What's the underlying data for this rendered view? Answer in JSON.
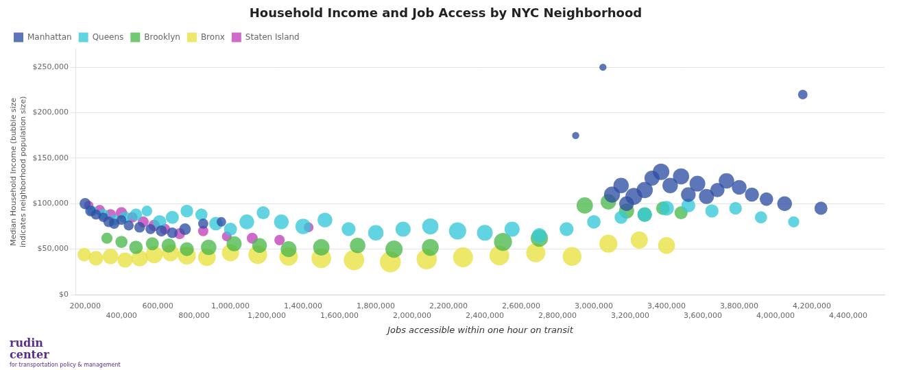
{
  "chart_data": {
    "type": "bubble",
    "title": "Household Income and Job Access by NYC Neighborhood",
    "xlabel": "Jobs accessible within one hour on transit",
    "ylabel": "Median Household Income (bubble size\nindicates neighborhood population size)",
    "xlim": [
      150000,
      4600000
    ],
    "ylim": [
      0,
      270000
    ],
    "xticks": [
      {
        "value": 200000,
        "label": "200,000"
      },
      {
        "value": 400000,
        "label": "400,000"
      },
      {
        "value": 600000,
        "label": "600,000"
      },
      {
        "value": 800000,
        "label": "800,000"
      },
      {
        "value": 1000000,
        "label": "1,000,000"
      },
      {
        "value": 1200000,
        "label": "1,200,000"
      },
      {
        "value": 1400000,
        "label": "1,400,000"
      },
      {
        "value": 1600000,
        "label": "1,600,000"
      },
      {
        "value": 1800000,
        "label": "1,800,000"
      },
      {
        "value": 2000000,
        "label": "2,000,000"
      },
      {
        "value": 2200000,
        "label": "2,200,000"
      },
      {
        "value": 2400000,
        "label": "2,400,000"
      },
      {
        "value": 2600000,
        "label": "2,600,000"
      },
      {
        "value": 2800000,
        "label": "2,800,000"
      },
      {
        "value": 3000000,
        "label": "3,000,000"
      },
      {
        "value": 3200000,
        "label": "3,200,000"
      },
      {
        "value": 3400000,
        "label": "3,400,000"
      },
      {
        "value": 3600000,
        "label": "3,600,000"
      },
      {
        "value": 3800000,
        "label": "3,800,000"
      },
      {
        "value": 4000000,
        "label": "4,000,000"
      },
      {
        "value": 4200000,
        "label": "4,200,000"
      },
      {
        "value": 4400000,
        "label": "4,400,000"
      }
    ],
    "yticks": [
      {
        "value": 0,
        "label": "$0"
      },
      {
        "value": 50000,
        "label": "$50,000"
      },
      {
        "value": 100000,
        "label": "$100,000"
      },
      {
        "value": 150000,
        "label": "$150,000"
      },
      {
        "value": 200000,
        "label": "$200,000"
      },
      {
        "value": 250000,
        "label": "$250,000"
      }
    ],
    "grid": "y",
    "legend": "upper left",
    "series": [
      {
        "name": "Manhattan",
        "color": "#2E4FA3",
        "x": [
          200000,
          230000,
          260000,
          300000,
          330000,
          360000,
          400000,
          440000,
          500000,
          560000,
          620000,
          680000,
          750000,
          850000,
          950000,
          2900000,
          3050000,
          3100000,
          3150000,
          3180000,
          3220000,
          3280000,
          3320000,
          3370000,
          3420000,
          3480000,
          3520000,
          3570000,
          3620000,
          3680000,
          3730000,
          3800000,
          3870000,
          3950000,
          4050000,
          4150000,
          4250000
        ],
        "y": [
          100000,
          92000,
          88000,
          85000,
          80000,
          78000,
          82000,
          76000,
          74000,
          72000,
          70000,
          68000,
          72000,
          78000,
          80000,
          175000,
          250000,
          110000,
          120000,
          100000,
          108000,
          115000,
          128000,
          135000,
          120000,
          130000,
          110000,
          122000,
          108000,
          115000,
          125000,
          118000,
          110000,
          105000,
          100000,
          220000,
          95000
        ],
        "size": [
          220,
          200,
          180,
          160,
          200,
          190,
          170,
          180,
          200,
          180,
          220,
          200,
          240,
          180,
          160,
          90,
          90,
          450,
          420,
          380,
          500,
          460,
          400,
          480,
          420,
          460,
          380,
          440,
          400,
          360,
          420,
          380,
          350,
          320,
          380,
          160,
          300
        ]
      },
      {
        "name": "Queens",
        "color": "#36C8D8",
        "x": [
          240000,
          300000,
          360000,
          420000,
          480000,
          540000,
          610000,
          680000,
          760000,
          840000,
          920000,
          1000000,
          1090000,
          1180000,
          1280000,
          1400000,
          1520000,
          1650000,
          1800000,
          1950000,
          2100000,
          2250000,
          2400000,
          2550000,
          2700000,
          2850000,
          3000000,
          3150000,
          3280000,
          3400000,
          3520000,
          3650000,
          3780000,
          3920000,
          4100000
        ],
        "y": [
          92000,
          88000,
          82000,
          85000,
          88000,
          92000,
          80000,
          85000,
          92000,
          88000,
          78000,
          72000,
          80000,
          90000,
          80000,
          75000,
          82000,
          72000,
          68000,
          72000,
          75000,
          70000,
          68000,
          72000,
          65000,
          72000,
          80000,
          85000,
          88000,
          95000,
          98000,
          92000,
          95000,
          85000,
          80000
        ],
        "size": [
          180,
          220,
          200,
          240,
          260,
          200,
          320,
          300,
          280,
          260,
          320,
          300,
          380,
          300,
          380,
          420,
          380,
          340,
          420,
          400,
          460,
          520,
          440,
          400,
          380,
          340,
          320,
          300,
          360,
          380,
          340,
          310,
          280,
          260,
          220
        ]
      },
      {
        "name": "Brooklyn",
        "color": "#4CB84C",
        "x": [
          320000,
          400000,
          480000,
          570000,
          660000,
          760000,
          880000,
          1020000,
          1160000,
          1320000,
          1500000,
          1700000,
          1900000,
          2100000,
          2500000,
          2700000,
          2950000,
          3080000,
          3180000,
          3280000,
          3380000,
          3480000
        ],
        "y": [
          62000,
          58000,
          52000,
          56000,
          54000,
          50000,
          52000,
          56000,
          54000,
          50000,
          52000,
          54000,
          50000,
          52000,
          58000,
          62000,
          98000,
          102000,
          92000,
          88000,
          95000,
          90000
        ],
        "size": [
          220,
          260,
          320,
          300,
          360,
          340,
          420,
          400,
          380,
          440,
          470,
          420,
          520,
          500,
          570,
          520,
          470,
          420,
          400,
          370,
          320,
          300
        ]
      },
      {
        "name": "Bronx",
        "color": "#E8E040",
        "x": [
          195000,
          260000,
          340000,
          420000,
          500000,
          580000,
          670000,
          760000,
          870000,
          1000000,
          1150000,
          1320000,
          1500000,
          1680000,
          1880000,
          2080000,
          2280000,
          2480000,
          2680000,
          2880000,
          3080000,
          3250000,
          3400000
        ],
        "y": [
          44000,
          40000,
          42000,
          38000,
          40000,
          44000,
          46000,
          43000,
          41000,
          46000,
          44000,
          42000,
          40000,
          38000,
          36000,
          39000,
          41000,
          43000,
          46000,
          42000,
          56000,
          60000,
          54000
        ],
        "size": [
          320,
          370,
          420,
          400,
          470,
          520,
          500,
          570,
          540,
          520,
          620,
          600,
          680,
          730,
          770,
          720,
          700,
          680,
          640,
          620,
          570,
          520,
          500
        ]
      },
      {
        "name": "Staten Island",
        "color": "#C040B8",
        "x": [
          220000,
          280000,
          340000,
          400000,
          460000,
          520000,
          580000,
          640000,
          720000,
          850000,
          980000,
          1120000,
          1270000,
          1430000
        ],
        "y": [
          98000,
          93000,
          88000,
          90000,
          85000,
          80000,
          76000,
          72000,
          67000,
          70000,
          64000,
          62000,
          60000,
          74000
        ],
        "size": [
          160,
          190,
          210,
          230,
          190,
          210,
          230,
          190,
          210,
          190,
          170,
          210,
          190,
          170
        ]
      }
    ],
    "annotations": [
      {
        "text": "rudin",
        "color": "#5B2D8E"
      },
      {
        "text": "center",
        "color": "#5B2D8E"
      },
      {
        "text": "for transportation policy & management",
        "color": "#5B2D8E"
      }
    ]
  }
}
